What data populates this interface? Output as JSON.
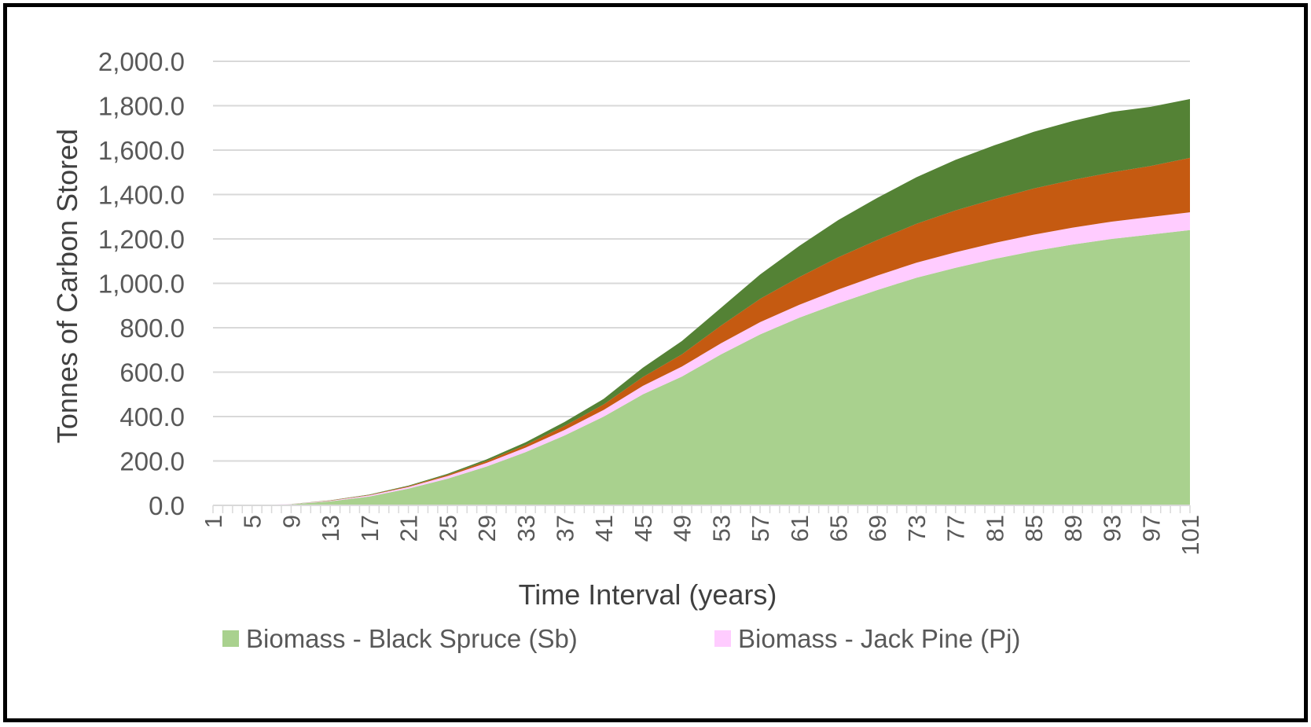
{
  "chart_data": {
    "type": "area",
    "stacked": true,
    "xlabel": "Time Interval (years)",
    "ylabel": "Tonnes of Carbon Stored",
    "ylim": [
      0,
      2000
    ],
    "yticks": [
      "0.0",
      "200.0",
      "400.0",
      "600.0",
      "800.0",
      "1,000.0",
      "1,200.0",
      "1,400.0",
      "1,600.0",
      "1,800.0",
      "2,000.0"
    ],
    "xticks": [
      "1",
      "5",
      "9",
      "13",
      "17",
      "21",
      "25",
      "29",
      "33",
      "37",
      "41",
      "45",
      "49",
      "53",
      "57",
      "61",
      "65",
      "69",
      "73",
      "77",
      "81",
      "85",
      "89",
      "93",
      "97",
      "101"
    ],
    "grid": "horizontal",
    "legend_position": "bottom",
    "legend": [
      "Biomass - Black Spruce (Sb)",
      "Biomass - Jack Pine (Pj)"
    ],
    "x": [
      1,
      5,
      9,
      13,
      17,
      21,
      25,
      29,
      33,
      37,
      41,
      45,
      49,
      53,
      57,
      61,
      65,
      69,
      73,
      77,
      81,
      85,
      89,
      93,
      97,
      101
    ],
    "series": [
      {
        "name": "Biomass - Black Spruce (Sb)",
        "color": "#a9d18e",
        "values": [
          0,
          0,
          5,
          18,
          40,
          75,
          120,
          175,
          240,
          315,
          400,
          500,
          580,
          680,
          770,
          845,
          910,
          970,
          1025,
          1070,
          1110,
          1145,
          1175,
          1200,
          1220,
          1240
        ]
      },
      {
        "color": "#ffccff",
        "values": [
          0,
          0,
          1,
          3,
          5,
          8,
          12,
          16,
          20,
          25,
          30,
          38,
          45,
          50,
          55,
          58,
          62,
          65,
          68,
          70,
          72,
          74,
          76,
          78,
          79,
          80
        ]
      },
      {
        "color": "#c55a11",
        "values": [
          0,
          0,
          0,
          1,
          2,
          3,
          5,
          8,
          12,
          18,
          25,
          40,
          55,
          80,
          105,
          125,
          145,
          160,
          175,
          188,
          198,
          208,
          215,
          222,
          230,
          245
        ]
      },
      {
        "color": "#548235",
        "values": [
          0,
          0,
          0,
          1,
          2,
          3,
          5,
          8,
          12,
          18,
          25,
          42,
          60,
          80,
          110,
          140,
          168,
          190,
          210,
          228,
          242,
          255,
          265,
          272,
          266,
          265
        ]
      }
    ]
  }
}
